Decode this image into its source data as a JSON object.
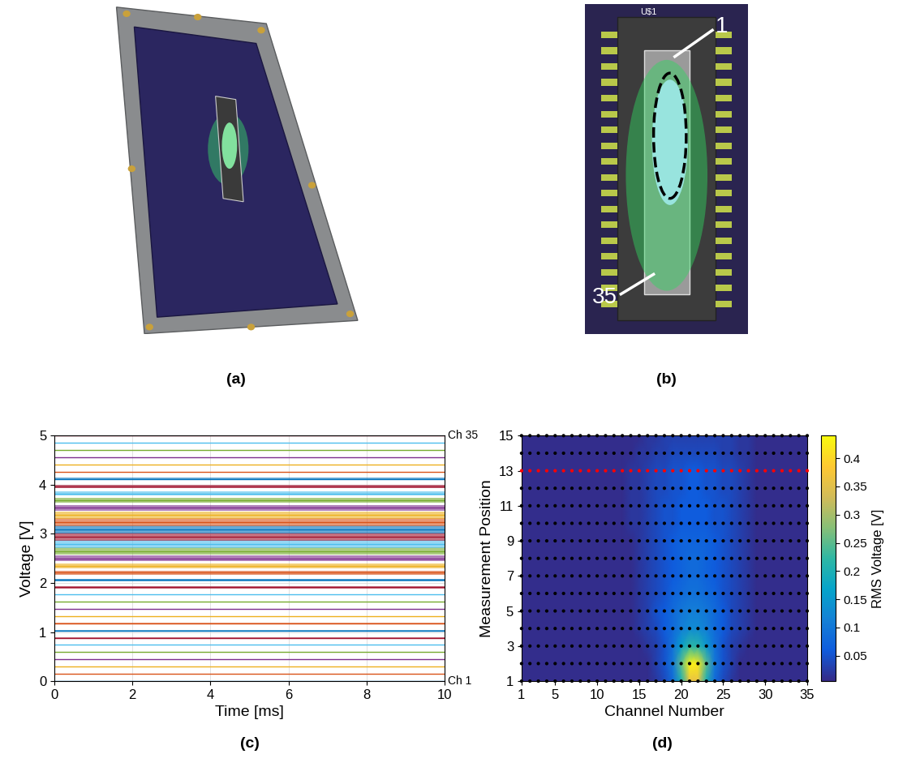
{
  "photos": [
    {
      "caption": "(a)"
    },
    {
      "caption": "(b)",
      "chip_label": "U$1",
      "pin_labels": [
        "1",
        "35"
      ]
    }
  ],
  "chart_data": [
    {
      "type": "line",
      "caption": "(c)",
      "x_label": "Time [ms]",
      "y_label": "Voltage [V]",
      "x": [
        0,
        10
      ],
      "xlim": [
        0,
        10
      ],
      "xticks": [
        0,
        2,
        4,
        6,
        8,
        10
      ],
      "ylim": [
        0,
        5
      ],
      "yticks": [
        0,
        1,
        2,
        3,
        4,
        5
      ],
      "grid": true,
      "levels": [
        0,
        0.15,
        0.29,
        0.44,
        0.59,
        0.74,
        0.88,
        1.03,
        1.18,
        1.32,
        1.47,
        1.62,
        1.76,
        1.91,
        2.06,
        2.21,
        2.35,
        2.5,
        2.65,
        2.79,
        2.94,
        3.09,
        3.24,
        3.38,
        3.53,
        3.68,
        3.82,
        3.97,
        4.12,
        4.26,
        4.41,
        4.56,
        4.71,
        4.85,
        5.0
      ],
      "spreads": [
        0.005,
        0.005,
        0.005,
        0.005,
        0.005,
        0.005,
        0.005,
        0.005,
        0.005,
        0.005,
        0.005,
        0.005,
        0.01,
        0.02,
        0.03,
        0.04,
        0.05,
        0.06,
        0.07,
        0.08,
        0.09,
        0.09,
        0.08,
        0.07,
        0.06,
        0.05,
        0.04,
        0.03,
        0.02,
        0.01,
        0.005,
        0.005,
        0.005,
        0.005,
        0.005
      ],
      "colors": [
        "#0072BD",
        "#D95319",
        "#EDB120",
        "#7E2F8E",
        "#77AC30",
        "#4DBEEE",
        "#A2142F",
        "#0072BD",
        "#D95319",
        "#EDB120",
        "#7E2F8E",
        "#77AC30",
        "#4DBEEE",
        "#A2142F",
        "#0072BD",
        "#D95319",
        "#EDB120",
        "#7E2F8E",
        "#77AC30",
        "#4DBEEE",
        "#A2142F",
        "#0072BD",
        "#D95319",
        "#EDB120",
        "#7E2F8E",
        "#77AC30",
        "#4DBEEE",
        "#A2142F",
        "#0072BD",
        "#D95319",
        "#EDB120",
        "#7E2F8E",
        "#77AC30",
        "#4DBEEE",
        "#A2142F"
      ],
      "channel_labels": [
        {
          "channel": 1,
          "text": "Ch 1"
        },
        {
          "channel": 35,
          "text": "Ch 35"
        }
      ]
    },
    {
      "type": "heatmap",
      "caption": "(d)",
      "x_label": "Channel Number",
      "y_label": "Measurement Position",
      "x": [
        1,
        2,
        3,
        4,
        5,
        6,
        7,
        8,
        9,
        10,
        11,
        12,
        13,
        14,
        15,
        16,
        17,
        18,
        19,
        20,
        21,
        22,
        23,
        24,
        25,
        26,
        27,
        28,
        29,
        30,
        31,
        32,
        33,
        34,
        35
      ],
      "y": [
        1,
        2,
        3,
        4,
        5,
        6,
        7,
        8,
        9,
        10,
        11,
        12,
        13,
        14,
        15
      ],
      "xlim": [
        1,
        35
      ],
      "xticks": [
        1,
        5,
        10,
        15,
        20,
        25,
        30,
        35
      ],
      "ylim": [
        1,
        15
      ],
      "yticks": [
        1,
        3,
        5,
        7,
        9,
        11,
        13,
        15
      ],
      "marked_row": 13,
      "colorbar_label": "RMS Voltage [V]",
      "colorbar_range": [
        0.005,
        0.44
      ],
      "colorbar_ticks": [
        0.05,
        0.1,
        0.15,
        0.2,
        0.25,
        0.3,
        0.35,
        0.4
      ],
      "cells": [
        [
          0.01,
          0.01,
          0.01,
          0.01,
          0.01,
          0.01,
          0.01,
          0.01,
          0.01,
          0.01,
          0.01,
          0.01,
          0.01,
          0.01,
          0.01,
          0.01,
          0.02,
          0.04,
          0.08,
          0.2,
          0.36,
          0.36,
          0.2,
          0.08,
          0.04,
          0.02,
          0.01,
          0.01,
          0.01,
          0.01,
          0.01,
          0.01,
          0.01,
          0.01,
          0.01
        ],
        [
          0.01,
          0.01,
          0.01,
          0.01,
          0.01,
          0.01,
          0.01,
          0.01,
          0.01,
          0.01,
          0.01,
          0.01,
          0.01,
          0.01,
          0.01,
          0.01,
          0.03,
          0.05,
          0.1,
          0.25,
          0.43,
          0.42,
          0.25,
          0.1,
          0.05,
          0.03,
          0.01,
          0.01,
          0.01,
          0.01,
          0.01,
          0.01,
          0.01,
          0.01,
          0.01
        ],
        [
          0.01,
          0.01,
          0.01,
          0.01,
          0.01,
          0.01,
          0.01,
          0.01,
          0.01,
          0.01,
          0.01,
          0.01,
          0.01,
          0.01,
          0.01,
          0.02,
          0.03,
          0.05,
          0.09,
          0.16,
          0.22,
          0.21,
          0.15,
          0.09,
          0.05,
          0.03,
          0.02,
          0.01,
          0.01,
          0.01,
          0.01,
          0.01,
          0.01,
          0.01,
          0.01
        ],
        [
          0.01,
          0.01,
          0.01,
          0.01,
          0.01,
          0.01,
          0.01,
          0.01,
          0.01,
          0.01,
          0.01,
          0.01,
          0.01,
          0.01,
          0.02,
          0.03,
          0.04,
          0.06,
          0.08,
          0.11,
          0.13,
          0.13,
          0.11,
          0.08,
          0.06,
          0.04,
          0.03,
          0.02,
          0.01,
          0.01,
          0.01,
          0.01,
          0.01,
          0.01,
          0.01
        ],
        [
          0.01,
          0.01,
          0.01,
          0.01,
          0.01,
          0.01,
          0.01,
          0.01,
          0.01,
          0.01,
          0.01,
          0.01,
          0.01,
          0.01,
          0.02,
          0.03,
          0.05,
          0.06,
          0.08,
          0.1,
          0.11,
          0.11,
          0.1,
          0.08,
          0.06,
          0.04,
          0.03,
          0.02,
          0.01,
          0.01,
          0.01,
          0.01,
          0.01,
          0.01,
          0.01
        ],
        [
          0.01,
          0.01,
          0.01,
          0.01,
          0.01,
          0.01,
          0.01,
          0.01,
          0.01,
          0.01,
          0.01,
          0.01,
          0.01,
          0.01,
          0.02,
          0.03,
          0.04,
          0.05,
          0.07,
          0.08,
          0.09,
          0.09,
          0.08,
          0.07,
          0.05,
          0.04,
          0.03,
          0.02,
          0.01,
          0.01,
          0.01,
          0.01,
          0.01,
          0.01,
          0.01
        ],
        [
          0.01,
          0.01,
          0.01,
          0.01,
          0.01,
          0.01,
          0.01,
          0.01,
          0.01,
          0.01,
          0.01,
          0.01,
          0.01,
          0.01,
          0.02,
          0.03,
          0.04,
          0.05,
          0.06,
          0.07,
          0.08,
          0.08,
          0.07,
          0.06,
          0.05,
          0.04,
          0.03,
          0.02,
          0.01,
          0.01,
          0.01,
          0.01,
          0.01,
          0.01,
          0.01
        ],
        [
          0.01,
          0.01,
          0.01,
          0.01,
          0.01,
          0.01,
          0.01,
          0.01,
          0.01,
          0.01,
          0.01,
          0.01,
          0.01,
          0.01,
          0.02,
          0.03,
          0.04,
          0.05,
          0.06,
          0.07,
          0.08,
          0.08,
          0.07,
          0.06,
          0.05,
          0.04,
          0.03,
          0.02,
          0.01,
          0.01,
          0.01,
          0.01,
          0.01,
          0.01,
          0.01
        ],
        [
          0.01,
          0.01,
          0.01,
          0.01,
          0.01,
          0.01,
          0.01,
          0.01,
          0.01,
          0.01,
          0.01,
          0.01,
          0.01,
          0.01,
          0.02,
          0.03,
          0.04,
          0.05,
          0.06,
          0.07,
          0.07,
          0.07,
          0.07,
          0.06,
          0.05,
          0.04,
          0.03,
          0.02,
          0.01,
          0.01,
          0.01,
          0.01,
          0.01,
          0.01,
          0.01
        ],
        [
          0.01,
          0.01,
          0.01,
          0.01,
          0.01,
          0.01,
          0.01,
          0.01,
          0.01,
          0.01,
          0.01,
          0.01,
          0.01,
          0.02,
          0.02,
          0.03,
          0.04,
          0.05,
          0.05,
          0.06,
          0.06,
          0.06,
          0.06,
          0.05,
          0.05,
          0.04,
          0.03,
          0.02,
          0.01,
          0.01,
          0.01,
          0.01,
          0.01,
          0.01,
          0.01
        ],
        [
          0.01,
          0.01,
          0.01,
          0.01,
          0.01,
          0.01,
          0.01,
          0.01,
          0.01,
          0.01,
          0.01,
          0.01,
          0.01,
          0.02,
          0.02,
          0.03,
          0.04,
          0.05,
          0.05,
          0.06,
          0.06,
          0.06,
          0.06,
          0.05,
          0.05,
          0.04,
          0.03,
          0.02,
          0.01,
          0.01,
          0.01,
          0.01,
          0.01,
          0.01,
          0.01
        ],
        [
          0.01,
          0.01,
          0.01,
          0.01,
          0.01,
          0.01,
          0.01,
          0.01,
          0.01,
          0.01,
          0.01,
          0.01,
          0.01,
          0.02,
          0.02,
          0.03,
          0.04,
          0.04,
          0.05,
          0.05,
          0.06,
          0.06,
          0.05,
          0.05,
          0.04,
          0.04,
          0.03,
          0.02,
          0.01,
          0.01,
          0.01,
          0.01,
          0.01,
          0.01,
          0.01
        ],
        [
          0.01,
          0.01,
          0.01,
          0.01,
          0.01,
          0.01,
          0.01,
          0.01,
          0.01,
          0.01,
          0.01,
          0.01,
          0.01,
          0.02,
          0.02,
          0.03,
          0.04,
          0.04,
          0.05,
          0.05,
          0.06,
          0.06,
          0.05,
          0.05,
          0.04,
          0.04,
          0.03,
          0.02,
          0.01,
          0.01,
          0.01,
          0.01,
          0.01,
          0.01,
          0.01
        ],
        [
          0.01,
          0.01,
          0.01,
          0.01,
          0.01,
          0.01,
          0.01,
          0.01,
          0.01,
          0.01,
          0.01,
          0.01,
          0.01,
          0.01,
          0.02,
          0.02,
          0.03,
          0.03,
          0.04,
          0.04,
          0.04,
          0.04,
          0.04,
          0.04,
          0.03,
          0.03,
          0.02,
          0.02,
          0.01,
          0.01,
          0.01,
          0.01,
          0.01,
          0.01,
          0.01
        ],
        [
          0.01,
          0.01,
          0.01,
          0.01,
          0.01,
          0.01,
          0.01,
          0.01,
          0.01,
          0.01,
          0.01,
          0.01,
          0.01,
          0.01,
          0.01,
          0.02,
          0.02,
          0.03,
          0.03,
          0.03,
          0.03,
          0.03,
          0.03,
          0.03,
          0.03,
          0.03,
          0.02,
          0.02,
          0.01,
          0.01,
          0.01,
          0.01,
          0.01,
          0.01,
          0.01
        ]
      ]
    }
  ]
}
